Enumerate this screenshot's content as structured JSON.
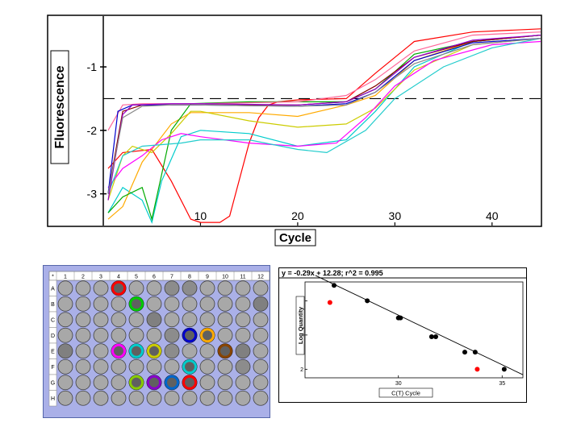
{
  "chart_data": [
    {
      "type": "line",
      "xlabel": "Cycle",
      "ylabel": "Fluorescence",
      "xlim": [
        0,
        45
      ],
      "ylim": [
        -3.5,
        -0.2
      ],
      "x_ticks": [
        "10",
        "20",
        "30",
        "40"
      ],
      "y_ticks": [
        "-1",
        "-2",
        "-3"
      ],
      "threshold": -1.5,
      "grid": false,
      "series": [
        {
          "color": "#ff0000",
          "x": [
            0.5,
            2,
            5,
            7,
            9,
            10,
            12,
            13,
            15,
            16,
            17,
            18,
            20,
            25,
            28,
            32,
            38,
            45
          ],
          "y": [
            -2.6,
            -2.35,
            -2.3,
            -2.8,
            -3.4,
            -3.45,
            -3.45,
            -3.35,
            -2.2,
            -1.8,
            -1.6,
            -1.55,
            -1.52,
            -1.5,
            -1.1,
            -0.6,
            -0.45,
            -0.4
          ]
        },
        {
          "color": "#00cccc",
          "x": [
            0.5,
            2,
            4,
            5,
            6,
            8,
            10,
            15,
            20,
            25,
            28,
            32,
            38,
            45
          ],
          "y": [
            -3.3,
            -2.9,
            -3.1,
            -3.45,
            -2.8,
            -2.1,
            -2.0,
            -2.05,
            -2.25,
            -2.15,
            -1.7,
            -1.0,
            -0.6,
            -0.5
          ]
        },
        {
          "color": "#ffaa00",
          "x": [
            0.5,
            2,
            4,
            7,
            9,
            10,
            15,
            20,
            25,
            28,
            32,
            38,
            45
          ],
          "y": [
            -3.4,
            -3.2,
            -2.5,
            -1.9,
            -1.72,
            -1.72,
            -1.72,
            -1.78,
            -1.6,
            -1.45,
            -0.9,
            -0.6,
            -0.5
          ]
        },
        {
          "color": "#00aa00",
          "x": [
            0.5,
            2,
            4,
            5,
            7,
            9,
            15,
            20,
            25,
            28,
            32,
            38,
            45
          ],
          "y": [
            -3.3,
            -3.05,
            -2.9,
            -3.4,
            -2.0,
            -1.58,
            -1.55,
            -1.55,
            -1.55,
            -1.35,
            -0.8,
            -0.6,
            -0.5
          ]
        },
        {
          "color": "#cccc00",
          "x": [
            0.5,
            2,
            3,
            5,
            7,
            9,
            10,
            15,
            20,
            25,
            28,
            32,
            38,
            45
          ],
          "y": [
            -3.1,
            -2.4,
            -2.25,
            -2.35,
            -2.05,
            -1.7,
            -1.7,
            -1.85,
            -1.95,
            -1.9,
            -1.65,
            -1.05,
            -0.65,
            -0.55
          ]
        },
        {
          "color": "#ff00ff",
          "x": [
            0.5,
            2,
            4,
            6,
            8,
            10,
            15,
            20,
            24,
            27,
            30,
            34,
            40,
            45
          ],
          "y": [
            -2.9,
            -2.6,
            -2.4,
            -2.15,
            -2.05,
            -2.1,
            -2.2,
            -2.25,
            -2.2,
            -1.8,
            -1.3,
            -0.9,
            -0.65,
            -0.6
          ]
        },
        {
          "color": "#22cccc",
          "x": [
            0.5,
            2,
            4,
            8,
            10,
            15,
            20,
            23,
            27,
            30,
            35,
            40,
            45
          ],
          "y": [
            -3.0,
            -2.4,
            -2.25,
            -2.2,
            -2.15,
            -2.15,
            -2.3,
            -2.35,
            -2.0,
            -1.5,
            -1.0,
            -0.7,
            -0.55
          ]
        },
        {
          "color": "#ff6699",
          "x": [
            0.5,
            2,
            4,
            7,
            10,
            20,
            25,
            28,
            32,
            38,
            45
          ],
          "y": [
            -2.0,
            -1.6,
            -1.58,
            -1.58,
            -1.58,
            -1.55,
            -1.45,
            -1.2,
            -0.75,
            -0.5,
            -0.45
          ]
        },
        {
          "color": "#880000",
          "x": [
            0.5,
            2,
            4,
            7,
            10,
            20,
            25,
            28,
            32,
            38,
            45
          ],
          "y": [
            -3.0,
            -1.7,
            -1.6,
            -1.6,
            -1.6,
            -1.6,
            -1.55,
            -1.3,
            -0.85,
            -0.6,
            -0.5
          ]
        },
        {
          "color": "#0000cc",
          "x": [
            0.5,
            1.5,
            3,
            7,
            10,
            20,
            25,
            28,
            32,
            38,
            45
          ],
          "y": [
            -3.0,
            -1.7,
            -1.6,
            -1.6,
            -1.6,
            -1.62,
            -1.58,
            -1.4,
            -0.9,
            -0.62,
            -0.55
          ]
        },
        {
          "color": "#9900cc",
          "x": [
            0.5,
            2,
            3,
            7,
            10,
            20,
            25,
            28,
            32,
            38,
            45
          ],
          "y": [
            -3.1,
            -1.75,
            -1.6,
            -1.58,
            -1.58,
            -1.6,
            -1.55,
            -1.35,
            -0.85,
            -0.58,
            -0.5
          ]
        },
        {
          "color": "#888888",
          "x": [
            0.5,
            2,
            4,
            7,
            10,
            20,
            25,
            28,
            32,
            38,
            45
          ],
          "y": [
            -3.0,
            -1.8,
            -1.62,
            -1.6,
            -1.6,
            -1.62,
            -1.6,
            -1.4,
            -0.95,
            -0.65,
            -0.55
          ]
        }
      ]
    },
    {
      "type": "table",
      "header": [
        "*",
        "1",
        "2",
        "3",
        "4",
        "5",
        "6",
        "7",
        "8",
        "9",
        "10",
        "11",
        "12"
      ],
      "rows": [
        "A",
        "B",
        "C",
        "D",
        "E",
        "F",
        "G",
        "H"
      ],
      "well_shades": [
        "ddddddccdddd",
        "ddddcddddddb",
        "dddddbdddddd",
        "ddddddccdddd",
        "bddcddcdddbd",
        "ddddddddddcd",
        "ddddcdcddddd",
        "dddddddddddd"
      ],
      "highlighted": [
        {
          "row": 0,
          "col": 3,
          "color": "#ff0000"
        },
        {
          "row": 1,
          "col": 4,
          "color": "#00cc00"
        },
        {
          "row": 3,
          "col": 7,
          "color": "#0000cc"
        },
        {
          "row": 3,
          "col": 8,
          "color": "#ffaa00"
        },
        {
          "row": 4,
          "col": 3,
          "color": "#ff00ff"
        },
        {
          "row": 4,
          "col": 4,
          "color": "#00cccc"
        },
        {
          "row": 4,
          "col": 5,
          "color": "#cccc00"
        },
        {
          "row": 4,
          "col": 9,
          "color": "#884400"
        },
        {
          "row": 5,
          "col": 7,
          "color": "#00cccc"
        },
        {
          "row": 6,
          "col": 4,
          "color": "#88cc00"
        },
        {
          "row": 6,
          "col": 5,
          "color": "#8800cc"
        },
        {
          "row": 6,
          "col": 6,
          "color": "#0066cc"
        },
        {
          "row": 6,
          "col": 7,
          "color": "#ff0000"
        }
      ]
    },
    {
      "type": "scatter",
      "title": "y = -0.29x + 12.28;  r^2 = 0.995",
      "xlabel": "C(T) Cycle",
      "ylabel": "Log Quantity",
      "xlim": [
        25.5,
        36
      ],
      "ylim": [
        1.75,
        4.55
      ],
      "x_ticks": [
        "30",
        "35"
      ],
      "y_ticks": [
        "2",
        "3",
        "4"
      ],
      "fit": {
        "slope": -0.29,
        "intercept": 12.28
      },
      "points": [
        {
          "x": 26.9,
          "y": 4.45,
          "color": "#000000"
        },
        {
          "x": 28.5,
          "y": 4.0,
          "color": "#000000"
        },
        {
          "x": 30.0,
          "y": 3.5,
          "color": "#000000"
        },
        {
          "x": 30.1,
          "y": 3.5,
          "color": "#000000"
        },
        {
          "x": 31.6,
          "y": 2.95,
          "color": "#000000"
        },
        {
          "x": 31.8,
          "y": 2.95,
          "color": "#000000"
        },
        {
          "x": 33.2,
          "y": 2.5,
          "color": "#000000"
        },
        {
          "x": 33.7,
          "y": 2.5,
          "color": "#000000"
        },
        {
          "x": 35.1,
          "y": 2.0,
          "color": "#000000"
        },
        {
          "x": 26.7,
          "y": 3.95,
          "color": "#ff0000"
        },
        {
          "x": 33.8,
          "y": 2.0,
          "color": "#ff0000"
        }
      ]
    }
  ]
}
